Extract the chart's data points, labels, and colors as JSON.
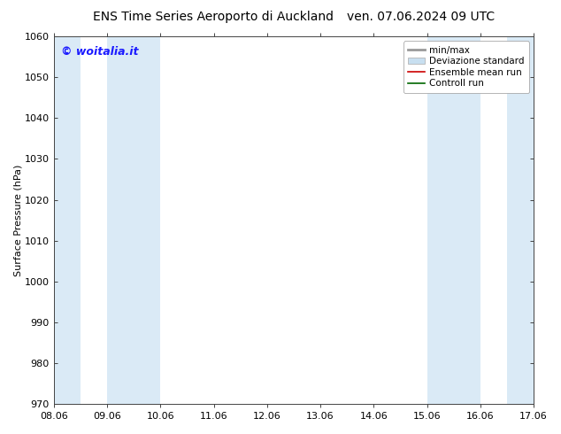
{
  "title_left": "ENS Time Series Aeroporto di Auckland",
  "title_right": "ven. 07.06.2024 09 UTC",
  "ylabel": "Surface Pressure (hPa)",
  "ylim": [
    970,
    1060
  ],
  "yticks": [
    970,
    980,
    990,
    1000,
    1010,
    1020,
    1030,
    1040,
    1050,
    1060
  ],
  "xlim": [
    0,
    9
  ],
  "xtick_labels": [
    "08.06",
    "09.06",
    "10.06",
    "11.06",
    "12.06",
    "13.06",
    "14.06",
    "15.06",
    "16.06",
    "17.06"
  ],
  "xtick_positions": [
    0,
    1,
    2,
    3,
    4,
    5,
    6,
    7,
    8,
    9
  ],
  "watermark": "© woitalia.it",
  "watermark_color": "#1a1aff",
  "shaded_bands": [
    {
      "x_start": 0.0,
      "x_end": 0.5
    },
    {
      "x_start": 1.0,
      "x_end": 2.0
    },
    {
      "x_start": 7.0,
      "x_end": 8.0
    },
    {
      "x_start": 8.5,
      "x_end": 9.0
    }
  ],
  "shaded_color": "#daeaf6",
  "legend_entries": [
    {
      "label": "min/max",
      "color": "#999999",
      "lw": 2,
      "style": "solid"
    },
    {
      "label": "Deviazione standard",
      "color": "#c8dff0",
      "lw": 6,
      "style": "solid"
    },
    {
      "label": "Ensemble mean run",
      "color": "#cc0000",
      "lw": 1.2,
      "style": "solid"
    },
    {
      "label": "Controll run",
      "color": "#006600",
      "lw": 1.2,
      "style": "solid"
    }
  ],
  "bg_color": "#ffffff",
  "plot_bg_color": "#ffffff",
  "spine_color": "#444444",
  "tick_color": "#444444",
  "title_fontsize": 10,
  "label_fontsize": 8,
  "tick_fontsize": 8,
  "legend_fontsize": 7.5,
  "watermark_fontsize": 9
}
